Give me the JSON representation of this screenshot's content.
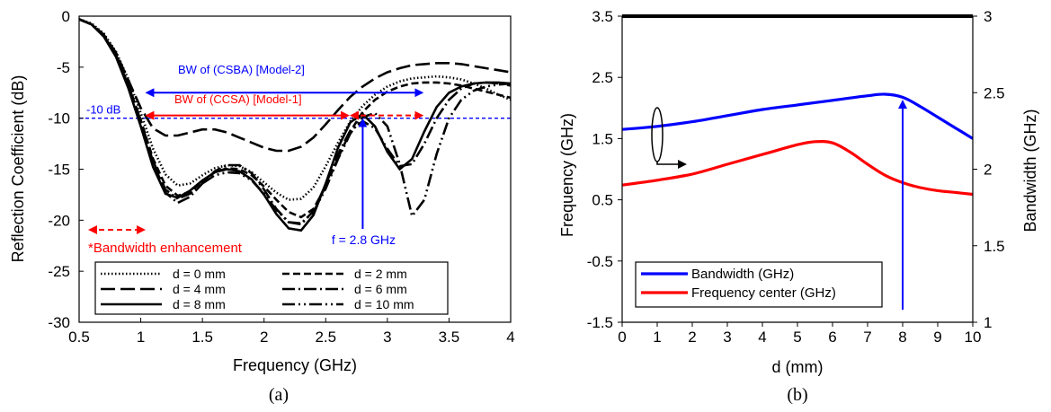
{
  "chart_data": [
    {
      "panel": "(a)",
      "type": "line",
      "xlabel": "Frequency (GHz)",
      "ylabel": "Reflection Coefficient (dB)",
      "xlim": [
        0.5,
        4
      ],
      "ylim": [
        -30,
        0
      ],
      "xticks": [
        "0.5",
        "1",
        "1.5",
        "2",
        "2.5",
        "3",
        "3.5",
        "4"
      ],
      "yticks": [
        "0",
        "-5",
        "-10",
        "-15",
        "-20",
        "-25",
        "-30"
      ],
      "legend_position": "bottom-center",
      "series": [
        {
          "name": "d = 0 mm",
          "dash": "dotted",
          "color": "#000000",
          "x": [
            0.5,
            0.6,
            0.7,
            0.8,
            0.9,
            1.0,
            1.1,
            1.2,
            1.3,
            1.4,
            1.5,
            1.6,
            1.7,
            1.8,
            1.9,
            2.0,
            2.1,
            2.2,
            2.3,
            2.4,
            2.5,
            2.6,
            2.7,
            2.8,
            2.9,
            3.0,
            3.1,
            3.2,
            3.3,
            3.4,
            3.5,
            3.6,
            3.7,
            3.8,
            3.9,
            4.0
          ],
          "y": [
            -0.3,
            -0.7,
            -1.7,
            -3.5,
            -6.2,
            -9.5,
            -13.0,
            -15.5,
            -16.6,
            -16.4,
            -15.6,
            -14.9,
            -14.6,
            -14.7,
            -15.3,
            -16.3,
            -17.3,
            -18.0,
            -17.9,
            -16.8,
            -14.7,
            -12.4,
            -10.3,
            -8.8,
            -7.7,
            -6.9,
            -6.4,
            -6.1,
            -6.0,
            -5.9,
            -6.0,
            -6.2,
            -6.6,
            -7.1,
            -7.7,
            -8.2
          ]
        },
        {
          "name": "d = 2 mm",
          "dash": "short-dash",
          "color": "#000000",
          "x": [
            0.5,
            0.6,
            0.7,
            0.8,
            0.9,
            1.0,
            1.1,
            1.2,
            1.3,
            1.4,
            1.5,
            1.6,
            1.7,
            1.8,
            1.9,
            2.0,
            2.1,
            2.2,
            2.3,
            2.4,
            2.5,
            2.6,
            2.7,
            2.8,
            2.9,
            3.0,
            3.1,
            3.2,
            3.3,
            3.4,
            3.5,
            3.6,
            3.7,
            3.8,
            3.9,
            4.0
          ],
          "y": [
            -0.3,
            -0.8,
            -1.9,
            -3.9,
            -6.8,
            -10.2,
            -14.0,
            -16.6,
            -17.6,
            -17.2,
            -16.2,
            -15.3,
            -14.9,
            -15.0,
            -15.6,
            -16.7,
            -18.0,
            -19.2,
            -19.7,
            -18.9,
            -16.7,
            -13.9,
            -11.3,
            -9.4,
            -8.2,
            -7.4,
            -6.9,
            -6.6,
            -6.5,
            -6.5,
            -6.6,
            -6.8,
            -7.1,
            -7.4,
            -7.7,
            -8.0
          ]
        },
        {
          "name": "d = 4 mm",
          "dash": "long-dash",
          "color": "#000000",
          "x": [
            0.5,
            0.6,
            0.7,
            0.8,
            0.9,
            1.0,
            1.1,
            1.2,
            1.3,
            1.4,
            1.5,
            1.6,
            1.7,
            1.8,
            1.9,
            2.0,
            2.1,
            2.2,
            2.3,
            2.4,
            2.5,
            2.6,
            2.7,
            2.8,
            2.9,
            3.0,
            3.1,
            3.2,
            3.3,
            3.4,
            3.5,
            3.6,
            3.7,
            3.8,
            3.9,
            4.0
          ],
          "y": [
            -0.3,
            -0.8,
            -1.8,
            -3.6,
            -6.3,
            -9.0,
            -11.0,
            -11.7,
            -11.7,
            -11.4,
            -11.1,
            -11.1,
            -11.4,
            -11.9,
            -12.4,
            -12.9,
            -13.2,
            -13.2,
            -12.8,
            -11.9,
            -10.6,
            -9.2,
            -7.9,
            -6.9,
            -6.1,
            -5.5,
            -5.1,
            -4.8,
            -4.7,
            -4.6,
            -4.6,
            -4.7,
            -4.9,
            -5.1,
            -5.3,
            -5.5
          ]
        },
        {
          "name": "d = 6 mm",
          "dash": "dash-dot",
          "color": "#000000",
          "x": [
            0.5,
            0.6,
            0.7,
            0.8,
            0.9,
            1.0,
            1.1,
            1.2,
            1.3,
            1.4,
            1.5,
            1.6,
            1.7,
            1.8,
            1.9,
            2.0,
            2.1,
            2.2,
            2.3,
            2.4,
            2.5,
            2.6,
            2.7,
            2.8,
            2.9,
            3.0,
            3.1,
            3.2,
            3.3,
            3.4,
            3.5,
            3.6,
            3.7,
            3.8,
            3.9,
            4.0
          ],
          "y": [
            -0.3,
            -0.8,
            -1.9,
            -3.9,
            -6.8,
            -10.3,
            -14.3,
            -17.3,
            -18.3,
            -17.7,
            -16.4,
            -15.2,
            -14.6,
            -14.6,
            -15.4,
            -17.0,
            -18.9,
            -20.2,
            -20.4,
            -19.1,
            -16.5,
            -13.5,
            -11.2,
            -10.3,
            -11.0,
            -13.0,
            -14.7,
            -14.5,
            -12.5,
            -10.0,
            -8.2,
            -7.1,
            -6.6,
            -6.5,
            -6.6,
            -6.8
          ]
        },
        {
          "name": "d = 8 mm",
          "dash": "solid",
          "color": "#000000",
          "x": [
            0.5,
            0.6,
            0.7,
            0.8,
            0.9,
            1.0,
            1.1,
            1.2,
            1.3,
            1.4,
            1.5,
            1.6,
            1.7,
            1.8,
            1.9,
            2.0,
            2.1,
            2.2,
            2.3,
            2.4,
            2.5,
            2.6,
            2.7,
            2.8,
            2.9,
            3.0,
            3.1,
            3.2,
            3.3,
            3.4,
            3.5,
            3.6,
            3.7,
            3.8,
            3.9,
            4.0
          ],
          "y": [
            -0.3,
            -0.8,
            -2.0,
            -4.0,
            -7.1,
            -10.8,
            -14.8,
            -17.4,
            -17.8,
            -17.1,
            -16.1,
            -15.3,
            -15.0,
            -15.2,
            -16.0,
            -17.5,
            -19.4,
            -20.8,
            -21.0,
            -19.5,
            -16.4,
            -12.9,
            -10.4,
            -9.6,
            -10.8,
            -13.3,
            -15.0,
            -14.0,
            -11.3,
            -8.9,
            -7.5,
            -6.9,
            -6.6,
            -6.5,
            -6.5,
            -6.6
          ]
        },
        {
          "name": "d = 10 mm",
          "dash": "dash-dot-dot",
          "color": "#000000",
          "x": [
            0.5,
            0.6,
            0.7,
            0.8,
            0.9,
            1.0,
            1.1,
            1.2,
            1.3,
            1.4,
            1.5,
            1.6,
            1.7,
            1.8,
            1.9,
            2.0,
            2.1,
            2.2,
            2.3,
            2.4,
            2.5,
            2.6,
            2.7,
            2.8,
            2.9,
            3.0,
            3.1,
            3.2,
            3.3,
            3.4,
            3.5,
            3.6,
            3.7,
            3.8,
            3.9,
            4.0
          ],
          "y": [
            -0.3,
            -0.8,
            -1.9,
            -3.8,
            -6.7,
            -10.3,
            -14.2,
            -17.0,
            -17.9,
            -17.4,
            -16.4,
            -15.6,
            -15.3,
            -15.4,
            -16.1,
            -17.4,
            -19.0,
            -20.2,
            -20.3,
            -19.2,
            -16.9,
            -14.0,
            -11.5,
            -9.9,
            -9.5,
            -10.8,
            -14.5,
            -19.6,
            -18.0,
            -13.5,
            -10.0,
            -8.2,
            -7.3,
            -6.9,
            -6.7,
            -6.6
          ]
        }
      ],
      "reference_line": {
        "y": -10,
        "label": "-10 dB",
        "color": "#0000ff"
      },
      "annotations": {
        "bw_model2": {
          "text": "BW of (CSBA) [Model-2]",
          "x_from": 1.05,
          "x_to": 3.28,
          "y": -7.5,
          "color": "#0000ff"
        },
        "bw_model1": {
          "text": "BW of (CCSA) [Model-1]",
          "x_from": 1.05,
          "x_to": 2.68,
          "y": -10,
          "color": "#ff0000"
        },
        "bw_extra": {
          "x_from": 2.68,
          "x_to": 3.28,
          "y": -10,
          "color": "#ff0000"
        },
        "freq_marker": {
          "text": "f = 2.8 GHz",
          "x": 2.8,
          "color": "#0000ff"
        },
        "enhancement": {
          "text": "*Bandwidth enhancement",
          "color": "#ff0000"
        }
      }
    },
    {
      "panel": "(b)",
      "type": "line",
      "xlabel": "d (mm)",
      "ylabel": "Frequency (GHz)",
      "y2label": "Bandwidth (GHz)",
      "xlim": [
        0,
        10
      ],
      "ylim": [
        -1.5,
        3.5
      ],
      "y2lim": [
        1,
        3
      ],
      "xticks": [
        "0",
        "1",
        "2",
        "3",
        "4",
        "5",
        "6",
        "7",
        "8",
        "9",
        "10"
      ],
      "yticks": [
        "3.5",
        "2.5",
        "1.5",
        "0.5",
        "-0.5",
        "-1.5"
      ],
      "y2ticks": [
        "3",
        "2.5",
        "2",
        "1.5",
        "1"
      ],
      "legend_position": "bottom-left",
      "series": [
        {
          "name": "Bandwidth (GHz)",
          "axis": "right",
          "color": "#0000ff",
          "x": [
            0,
            1,
            2,
            3,
            4,
            5,
            6,
            7,
            7.5,
            8,
            8.5,
            9,
            9.5,
            10
          ],
          "y": [
            2.26,
            2.28,
            2.31,
            2.35,
            2.39,
            2.42,
            2.45,
            2.48,
            2.49,
            2.47,
            2.41,
            2.34,
            2.27,
            2.2
          ]
        },
        {
          "name": "Frequency center (GHz)",
          "axis": "left",
          "color": "#ff0000",
          "x": [
            0,
            1,
            2,
            3,
            4,
            5,
            5.5,
            6,
            6.5,
            7,
            7.5,
            8,
            8.5,
            9,
            9.5,
            10
          ],
          "y": [
            0.74,
            0.82,
            0.92,
            1.08,
            1.24,
            1.4,
            1.45,
            1.43,
            1.28,
            1.08,
            0.9,
            0.78,
            0.7,
            0.65,
            0.62,
            0.59
          ]
        }
      ],
      "arrow": {
        "x": 8,
        "color": "#0000ff"
      }
    }
  ],
  "labels": {
    "panel_a": "(a)",
    "panel_b": "(b)"
  }
}
